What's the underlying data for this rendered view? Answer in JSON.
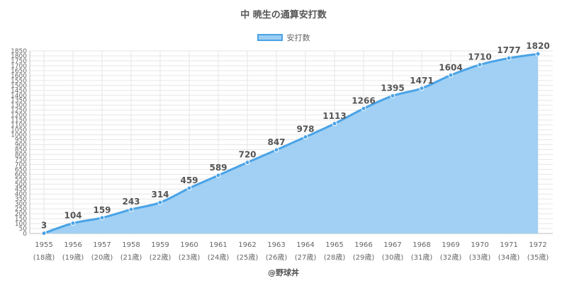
{
  "chart_data": {
    "type": "area",
    "title": "中 暁生の通算安打数",
    "legend": {
      "position": "top",
      "label": "安打数"
    },
    "series": [
      {
        "name": "安打数",
        "values": [
          3,
          104,
          159,
          243,
          314,
          459,
          589,
          720,
          847,
          978,
          1113,
          1266,
          1395,
          1471,
          1604,
          1710,
          1777,
          1820
        ]
      }
    ],
    "categories": [
      "1955",
      "1956",
      "1957",
      "1958",
      "1959",
      "1960",
      "1961",
      "1962",
      "1963",
      "1964",
      "1965",
      "1966",
      "1967",
      "1968",
      "1969",
      "1970",
      "1971",
      "1972"
    ],
    "category_sublabels": [
      "(18歳)",
      "(19歳)",
      "(20歳)",
      "(21歳)",
      "(22歳)",
      "(23歳)",
      "(24歳)",
      "(25歳)",
      "(26歳)",
      "(27歳)",
      "(28歳)",
      "(29歳)",
      "(30歳)",
      "(31歳)",
      "(32歳)",
      "(33歳)",
      "(34歳)",
      "(35歳)"
    ],
    "ylim": [
      0,
      1850
    ],
    "ytick_step": 50,
    "grid": true,
    "colors": {
      "line": "#4aa3e6",
      "fill": "#9ccdf3",
      "grid": "#e6e6e6",
      "axis": "#bdbdbd"
    },
    "source": "@野球丼"
  }
}
